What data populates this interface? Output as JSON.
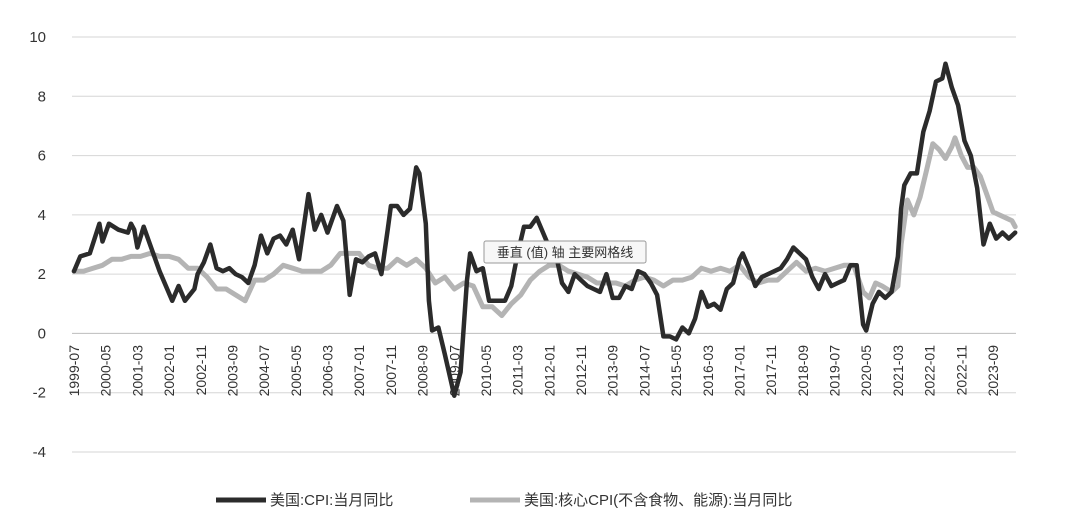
{
  "chart_data": {
    "type": "line",
    "ylim": [
      -4,
      10
    ],
    "yticks": [
      "10",
      "8",
      "6",
      "4",
      "2",
      "0",
      "-2",
      "-4"
    ],
    "ytick_values": [
      10,
      8,
      6,
      4,
      2,
      0,
      -2,
      -4
    ],
    "xticks": [
      "1999-07",
      "2000-05",
      "2001-03",
      "2002-01",
      "2002-11",
      "2003-09",
      "2004-07",
      "2005-05",
      "2006-03",
      "2007-01",
      "2007-11",
      "2008-09",
      "2009-07",
      "2010-05",
      "2011-03",
      "2012-01",
      "2012-11",
      "2013-09",
      "2014-07",
      "2015-05",
      "2016-03",
      "2017-01",
      "2017-11",
      "2018-09",
      "2019-07",
      "2020-05",
      "2021-03",
      "2022-01",
      "2022-11",
      "2023-09"
    ],
    "grid": true,
    "legend_position": "bottom",
    "tooltip": "垂直 (值) 轴 主要网格线",
    "series": [
      {
        "name": "美国:CPI:当月同比",
        "color": "#2b2b2b",
        "points": [
          [
            "1999-07",
            2.1
          ],
          [
            "1999-09",
            2.6
          ],
          [
            "1999-12",
            2.7
          ],
          [
            "2000-03",
            3.7
          ],
          [
            "2000-04",
            3.1
          ],
          [
            "2000-06",
            3.7
          ],
          [
            "2000-09",
            3.5
          ],
          [
            "2000-12",
            3.4
          ],
          [
            "2001-01",
            3.7
          ],
          [
            "2001-02",
            3.5
          ],
          [
            "2001-03",
            2.9
          ],
          [
            "2001-05",
            3.6
          ],
          [
            "2001-08",
            2.7
          ],
          [
            "2001-10",
            2.1
          ],
          [
            "2001-12",
            1.6
          ],
          [
            "2002-02",
            1.1
          ],
          [
            "2002-04",
            1.6
          ],
          [
            "2002-06",
            1.1
          ],
          [
            "2002-09",
            1.5
          ],
          [
            "2002-10",
            2.0
          ],
          [
            "2002-12",
            2.4
          ],
          [
            "2003-02",
            3.0
          ],
          [
            "2003-04",
            2.2
          ],
          [
            "2003-06",
            2.1
          ],
          [
            "2003-08",
            2.2
          ],
          [
            "2003-10",
            2.0
          ],
          [
            "2003-12",
            1.9
          ],
          [
            "2004-02",
            1.7
          ],
          [
            "2004-04",
            2.3
          ],
          [
            "2004-06",
            3.3
          ],
          [
            "2004-08",
            2.7
          ],
          [
            "2004-10",
            3.2
          ],
          [
            "2004-12",
            3.3
          ],
          [
            "2005-02",
            3.0
          ],
          [
            "2005-04",
            3.5
          ],
          [
            "2005-06",
            2.5
          ],
          [
            "2005-09",
            4.7
          ],
          [
            "2005-11",
            3.5
          ],
          [
            "2006-01",
            4.0
          ],
          [
            "2006-03",
            3.4
          ],
          [
            "2006-06",
            4.3
          ],
          [
            "2006-08",
            3.8
          ],
          [
            "2006-10",
            1.3
          ],
          [
            "2006-12",
            2.5
          ],
          [
            "2007-02",
            2.4
          ],
          [
            "2007-04",
            2.6
          ],
          [
            "2007-06",
            2.7
          ],
          [
            "2007-08",
            2.0
          ],
          [
            "2007-10",
            3.5
          ],
          [
            "2007-11",
            4.3
          ],
          [
            "2008-01",
            4.3
          ],
          [
            "2008-03",
            4.0
          ],
          [
            "2008-05",
            4.2
          ],
          [
            "2008-07",
            5.6
          ],
          [
            "2008-08",
            5.4
          ],
          [
            "2008-10",
            3.7
          ],
          [
            "2008-11",
            1.1
          ],
          [
            "2008-12",
            0.1
          ],
          [
            "2009-02",
            0.2
          ],
          [
            "2009-04",
            -0.7
          ],
          [
            "2009-07",
            -2.1
          ],
          [
            "2009-09",
            -1.3
          ],
          [
            "2009-11",
            1.8
          ],
          [
            "2009-12",
            2.7
          ],
          [
            "2010-02",
            2.1
          ],
          [
            "2010-04",
            2.2
          ],
          [
            "2010-06",
            1.1
          ],
          [
            "2010-09",
            1.1
          ],
          [
            "2010-11",
            1.1
          ],
          [
            "2011-01",
            1.6
          ],
          [
            "2011-03",
            2.7
          ],
          [
            "2011-05",
            3.6
          ],
          [
            "2011-07",
            3.6
          ],
          [
            "2011-09",
            3.9
          ],
          [
            "2011-11",
            3.4
          ],
          [
            "2012-01",
            2.9
          ],
          [
            "2012-03",
            2.7
          ],
          [
            "2012-05",
            1.7
          ],
          [
            "2012-07",
            1.4
          ],
          [
            "2012-09",
            2.0
          ],
          [
            "2012-11",
            1.8
          ],
          [
            "2013-01",
            1.6
          ],
          [
            "2013-03",
            1.5
          ],
          [
            "2013-05",
            1.4
          ],
          [
            "2013-07",
            2.0
          ],
          [
            "2013-09",
            1.2
          ],
          [
            "2013-11",
            1.2
          ],
          [
            "2014-01",
            1.6
          ],
          [
            "2014-03",
            1.5
          ],
          [
            "2014-05",
            2.1
          ],
          [
            "2014-07",
            2.0
          ],
          [
            "2014-09",
            1.7
          ],
          [
            "2014-11",
            1.3
          ],
          [
            "2015-01",
            -0.1
          ],
          [
            "2015-03",
            -0.1
          ],
          [
            "2015-05",
            -0.2
          ],
          [
            "2015-07",
            0.2
          ],
          [
            "2015-09",
            0.0
          ],
          [
            "2015-11",
            0.5
          ],
          [
            "2016-01",
            1.4
          ],
          [
            "2016-03",
            0.9
          ],
          [
            "2016-05",
            1.0
          ],
          [
            "2016-07",
            0.8
          ],
          [
            "2016-09",
            1.5
          ],
          [
            "2016-11",
            1.7
          ],
          [
            "2017-01",
            2.5
          ],
          [
            "2017-02",
            2.7
          ],
          [
            "2017-04",
            2.2
          ],
          [
            "2017-06",
            1.6
          ],
          [
            "2017-08",
            1.9
          ],
          [
            "2017-10",
            2.0
          ],
          [
            "2017-12",
            2.1
          ],
          [
            "2018-02",
            2.2
          ],
          [
            "2018-04",
            2.5
          ],
          [
            "2018-06",
            2.9
          ],
          [
            "2018-08",
            2.7
          ],
          [
            "2018-10",
            2.5
          ],
          [
            "2018-12",
            1.9
          ],
          [
            "2019-02",
            1.5
          ],
          [
            "2019-04",
            2.0
          ],
          [
            "2019-06",
            1.6
          ],
          [
            "2019-08",
            1.7
          ],
          [
            "2019-10",
            1.8
          ],
          [
            "2019-12",
            2.3
          ],
          [
            "2020-02",
            2.3
          ],
          [
            "2020-04",
            0.3
          ],
          [
            "2020-05",
            0.1
          ],
          [
            "2020-07",
            1.0
          ],
          [
            "2020-09",
            1.4
          ],
          [
            "2020-11",
            1.2
          ],
          [
            "2021-01",
            1.4
          ],
          [
            "2021-03",
            2.6
          ],
          [
            "2021-04",
            4.2
          ],
          [
            "2021-05",
            5.0
          ],
          [
            "2021-07",
            5.4
          ],
          [
            "2021-09",
            5.4
          ],
          [
            "2021-11",
            6.8
          ],
          [
            "2022-01",
            7.5
          ],
          [
            "2022-03",
            8.5
          ],
          [
            "2022-05",
            8.6
          ],
          [
            "2022-06",
            9.1
          ],
          [
            "2022-08",
            8.3
          ],
          [
            "2022-10",
            7.7
          ],
          [
            "2022-12",
            6.5
          ],
          [
            "2023-02",
            6.0
          ],
          [
            "2023-04",
            4.9
          ],
          [
            "2023-06",
            3.0
          ],
          [
            "2023-08",
            3.7
          ],
          [
            "2023-10",
            3.2
          ],
          [
            "2023-12",
            3.4
          ],
          [
            "2024-02",
            3.2
          ],
          [
            "2024-04",
            3.4
          ]
        ]
      },
      {
        "name": "美国:核心CPI(不含食物、能源):当月同比",
        "color": "#b4b4b4",
        "points": [
          [
            "1999-07",
            2.1
          ],
          [
            "1999-10",
            2.1
          ],
          [
            "2000-01",
            2.2
          ],
          [
            "2000-04",
            2.3
          ],
          [
            "2000-07",
            2.5
          ],
          [
            "2000-10",
            2.5
          ],
          [
            "2001-01",
            2.6
          ],
          [
            "2001-04",
            2.6
          ],
          [
            "2001-07",
            2.7
          ],
          [
            "2001-10",
            2.6
          ],
          [
            "2002-01",
            2.6
          ],
          [
            "2002-04",
            2.5
          ],
          [
            "2002-07",
            2.2
          ],
          [
            "2002-10",
            2.2
          ],
          [
            "2003-01",
            1.9
          ],
          [
            "2003-04",
            1.5
          ],
          [
            "2003-07",
            1.5
          ],
          [
            "2003-10",
            1.3
          ],
          [
            "2004-01",
            1.1
          ],
          [
            "2004-04",
            1.8
          ],
          [
            "2004-07",
            1.8
          ],
          [
            "2004-10",
            2.0
          ],
          [
            "2005-01",
            2.3
          ],
          [
            "2005-04",
            2.2
          ],
          [
            "2005-07",
            2.1
          ],
          [
            "2005-10",
            2.1
          ],
          [
            "2006-01",
            2.1
          ],
          [
            "2006-04",
            2.3
          ],
          [
            "2006-07",
            2.7
          ],
          [
            "2006-10",
            2.7
          ],
          [
            "2007-01",
            2.7
          ],
          [
            "2007-04",
            2.3
          ],
          [
            "2007-07",
            2.2
          ],
          [
            "2007-10",
            2.2
          ],
          [
            "2008-01",
            2.5
          ],
          [
            "2008-04",
            2.3
          ],
          [
            "2008-07",
            2.5
          ],
          [
            "2008-10",
            2.2
          ],
          [
            "2009-01",
            1.7
          ],
          [
            "2009-04",
            1.9
          ],
          [
            "2009-07",
            1.5
          ],
          [
            "2009-10",
            1.7
          ],
          [
            "2010-01",
            1.6
          ],
          [
            "2010-04",
            0.9
          ],
          [
            "2010-07",
            0.9
          ],
          [
            "2010-10",
            0.6
          ],
          [
            "2011-01",
            1.0
          ],
          [
            "2011-04",
            1.3
          ],
          [
            "2011-07",
            1.8
          ],
          [
            "2011-10",
            2.1
          ],
          [
            "2012-01",
            2.3
          ],
          [
            "2012-04",
            2.3
          ],
          [
            "2012-07",
            2.1
          ],
          [
            "2012-10",
            2.0
          ],
          [
            "2013-01",
            1.9
          ],
          [
            "2013-04",
            1.7
          ],
          [
            "2013-07",
            1.7
          ],
          [
            "2013-10",
            1.7
          ],
          [
            "2014-01",
            1.6
          ],
          [
            "2014-04",
            1.8
          ],
          [
            "2014-07",
            1.9
          ],
          [
            "2014-10",
            1.8
          ],
          [
            "2015-01",
            1.6
          ],
          [
            "2015-04",
            1.8
          ],
          [
            "2015-07",
            1.8
          ],
          [
            "2015-10",
            1.9
          ],
          [
            "2016-01",
            2.2
          ],
          [
            "2016-04",
            2.1
          ],
          [
            "2016-07",
            2.2
          ],
          [
            "2016-10",
            2.1
          ],
          [
            "2017-01",
            2.3
          ],
          [
            "2017-04",
            1.9
          ],
          [
            "2017-07",
            1.7
          ],
          [
            "2017-10",
            1.8
          ],
          [
            "2018-01",
            1.8
          ],
          [
            "2018-04",
            2.1
          ],
          [
            "2018-07",
            2.4
          ],
          [
            "2018-10",
            2.1
          ],
          [
            "2019-01",
            2.2
          ],
          [
            "2019-04",
            2.1
          ],
          [
            "2019-07",
            2.2
          ],
          [
            "2019-10",
            2.3
          ],
          [
            "2020-01",
            2.3
          ],
          [
            "2020-04",
            1.4
          ],
          [
            "2020-06",
            1.2
          ],
          [
            "2020-08",
            1.7
          ],
          [
            "2020-10",
            1.6
          ],
          [
            "2021-01",
            1.4
          ],
          [
            "2021-03",
            1.6
          ],
          [
            "2021-04",
            3.0
          ],
          [
            "2021-06",
            4.5
          ],
          [
            "2021-08",
            4.0
          ],
          [
            "2021-10",
            4.6
          ],
          [
            "2021-12",
            5.5
          ],
          [
            "2022-02",
            6.4
          ],
          [
            "2022-04",
            6.2
          ],
          [
            "2022-06",
            5.9
          ],
          [
            "2022-08",
            6.3
          ],
          [
            "2022-09",
            6.6
          ],
          [
            "2022-11",
            6.0
          ],
          [
            "2023-01",
            5.6
          ],
          [
            "2023-03",
            5.6
          ],
          [
            "2023-05",
            5.3
          ],
          [
            "2023-07",
            4.7
          ],
          [
            "2023-09",
            4.1
          ],
          [
            "2023-11",
            4.0
          ],
          [
            "2024-01",
            3.9
          ],
          [
            "2024-03",
            3.8
          ],
          [
            "2024-04",
            3.6
          ]
        ]
      }
    ]
  }
}
